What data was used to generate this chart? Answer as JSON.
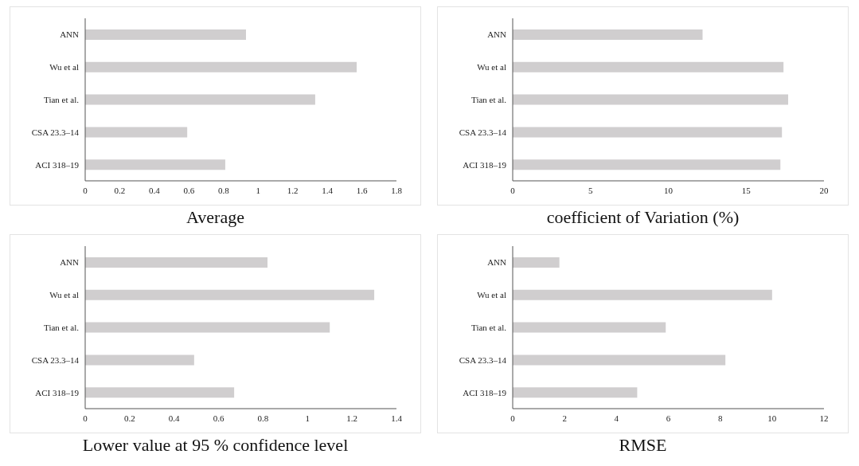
{
  "chart_data": [
    {
      "type": "bar",
      "orientation": "horizontal",
      "title": "Average",
      "categories": [
        "ANN",
        "Wu et al",
        "Tian et al.",
        "CSA 23.3–14",
        "ACI 318–19"
      ],
      "values": [
        0.93,
        1.57,
        1.33,
        0.59,
        0.81
      ],
      "color": "#d0cecf",
      "xlim": [
        0,
        1.8
      ],
      "xticks": [
        0,
        0.2,
        0.4,
        0.6,
        0.8,
        1,
        1.2,
        1.4,
        1.6,
        1.8
      ],
      "grid": false,
      "legend": false
    },
    {
      "type": "bar",
      "orientation": "horizontal",
      "title": "coefficient of Variation (%)",
      "categories": [
        "ANN",
        "Wu et al",
        "Tian et al.",
        "CSA 23.3–14",
        "ACI 318–19"
      ],
      "values": [
        12.2,
        17.4,
        17.7,
        17.3,
        17.2
      ],
      "color": "#d0cecf",
      "xlim": [
        0,
        20
      ],
      "xticks": [
        0,
        5,
        10,
        15,
        20
      ],
      "grid": false,
      "legend": false
    },
    {
      "type": "bar",
      "orientation": "horizontal",
      "title": "Lower value at 95 % confidence level",
      "categories": [
        "ANN",
        "Wu et al",
        "Tian et al.",
        "CSA 23.3–14",
        "ACI 318–19"
      ],
      "values": [
        0.82,
        1.3,
        1.1,
        0.49,
        0.67
      ],
      "color": "#d0cecf",
      "xlim": [
        0,
        1.4
      ],
      "xticks": [
        0,
        0.2,
        0.4,
        0.6,
        0.8,
        1,
        1.2,
        1.4
      ],
      "grid": false,
      "legend": false
    },
    {
      "type": "bar",
      "orientation": "horizontal",
      "title": "RMSE",
      "categories": [
        "ANN",
        "Wu et al",
        "Tian et al.",
        "CSA 23.3–14",
        "ACI 318–19"
      ],
      "values": [
        1.8,
        10,
        5.9,
        8.2,
        4.8
      ],
      "color": "#d0cecf",
      "xlim": [
        0,
        12
      ],
      "xticks": [
        0,
        2,
        4,
        6,
        8,
        10,
        12
      ],
      "grid": false,
      "legend": false
    }
  ]
}
